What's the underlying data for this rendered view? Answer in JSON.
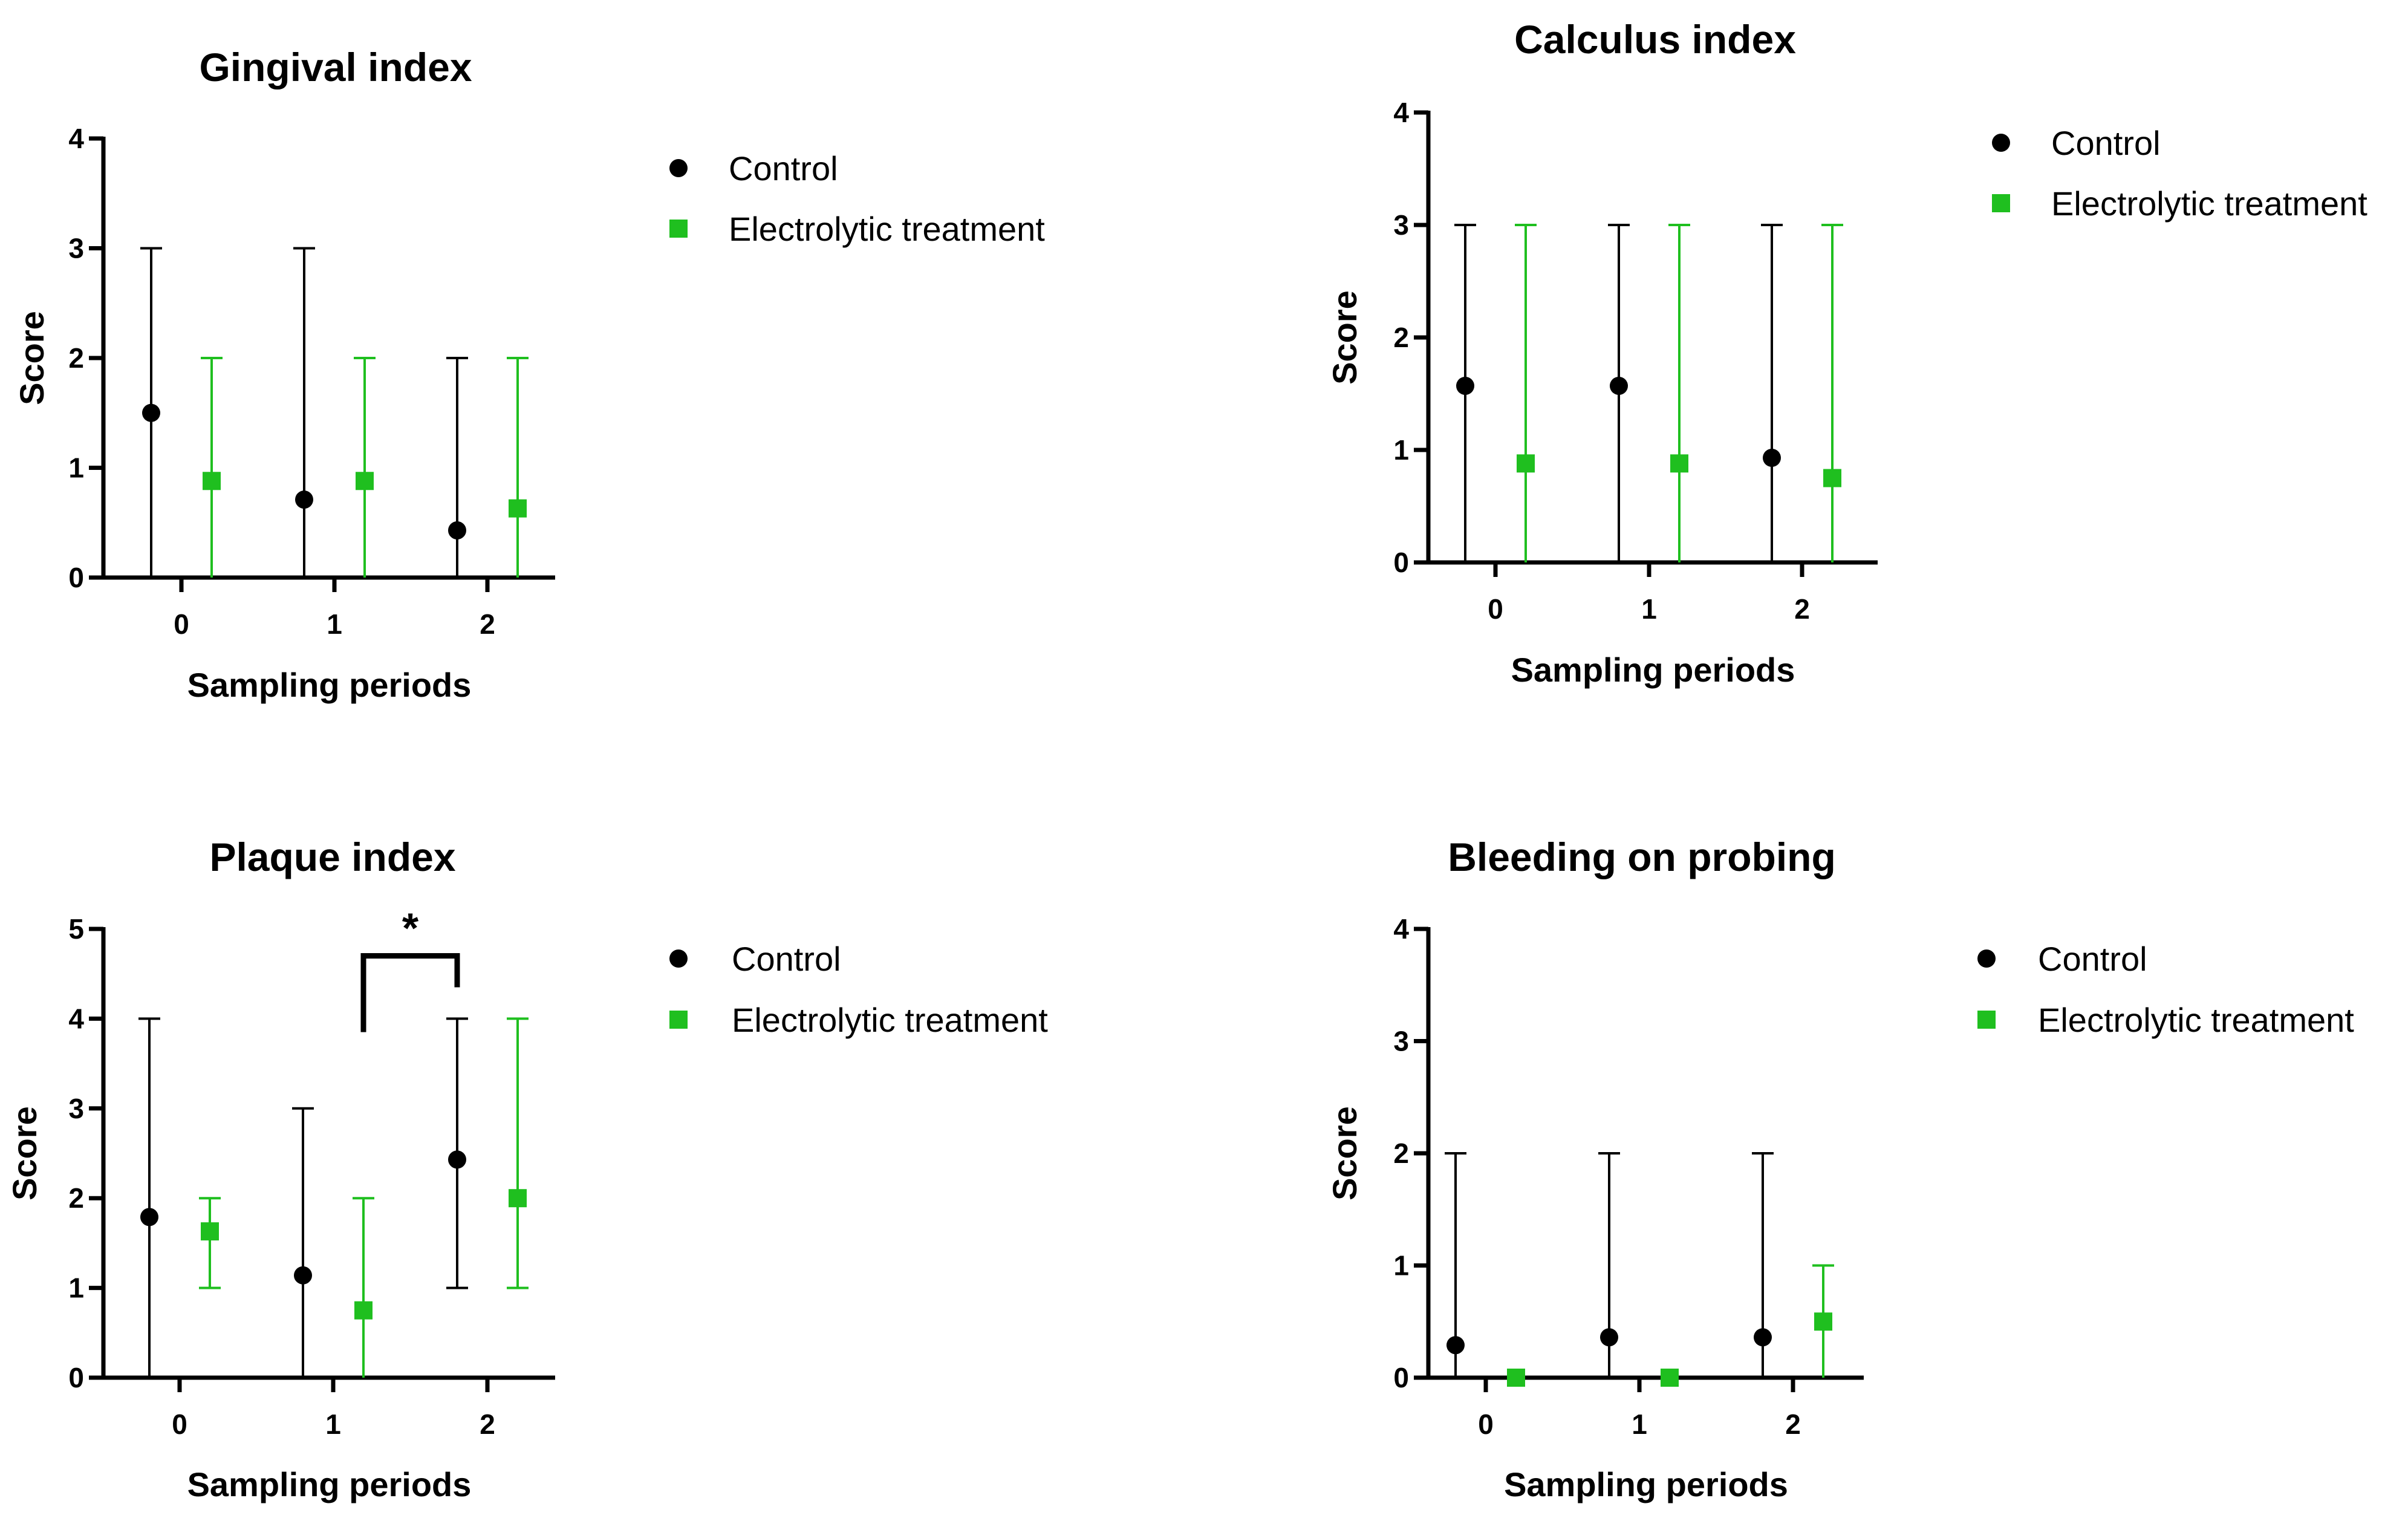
{
  "chart_data": [
    {
      "type": "scatter",
      "title": "Gingival index",
      "xlabel": "Sampling periods",
      "ylabel": "Score",
      "categories": [
        "0",
        "1",
        "2"
      ],
      "yticks": [
        "0",
        "1",
        "2",
        "3",
        "4"
      ],
      "ylim": [
        0,
        4
      ],
      "series": [
        {
          "name": "Control",
          "color": "#000000",
          "marker": "circle",
          "values": [
            1.5,
            0.71,
            0.43
          ],
          "lower": [
            0,
            0,
            0
          ],
          "upper": [
            3,
            3,
            2
          ]
        },
        {
          "name": "Electrolytic treatment",
          "color": "#1fbf1f",
          "marker": "square",
          "values": [
            0.88,
            0.88,
            0.63
          ],
          "lower": [
            0,
            0,
            0
          ],
          "upper": [
            2,
            2,
            2
          ]
        }
      ],
      "legend": [
        "Control",
        "Electrolytic treatment"
      ],
      "annotations": []
    },
    {
      "type": "scatter",
      "title": "Calculus index",
      "xlabel": "Sampling periods",
      "ylabel": "Score",
      "categories": [
        "0",
        "1",
        "2"
      ],
      "yticks": [
        "0",
        "1",
        "2",
        "3",
        "4"
      ],
      "ylim": [
        0,
        4
      ],
      "series": [
        {
          "name": "Control",
          "color": "#000000",
          "marker": "circle",
          "values": [
            1.57,
            1.57,
            0.93
          ],
          "lower": [
            0,
            0,
            0
          ],
          "upper": [
            3,
            3,
            3
          ]
        },
        {
          "name": "Electrolytic treatment",
          "color": "#1fbf1f",
          "marker": "square",
          "values": [
            0.88,
            0.88,
            0.75
          ],
          "lower": [
            0,
            0,
            0
          ],
          "upper": [
            3,
            3,
            3
          ]
        }
      ],
      "legend": [
        "Control",
        "Electrolytic treatment"
      ],
      "annotations": []
    },
    {
      "type": "scatter",
      "title": "Plaque index",
      "xlabel": "Sampling periods",
      "ylabel": "Score",
      "categories": [
        "0",
        "1",
        "2"
      ],
      "yticks": [
        "0",
        "1",
        "2",
        "3",
        "4",
        "5"
      ],
      "ylim": [
        0,
        5
      ],
      "series": [
        {
          "name": "Control",
          "color": "#000000",
          "marker": "circle",
          "values": [
            1.79,
            1.14,
            2.43
          ],
          "lower": [
            0,
            0,
            1
          ],
          "upper": [
            4,
            3,
            4
          ]
        },
        {
          "name": "Electrolytic treatment",
          "color": "#1fbf1f",
          "marker": "square",
          "values": [
            1.63,
            0.75,
            2.0
          ],
          "lower": [
            1,
            0,
            1
          ],
          "upper": [
            2,
            2,
            4
          ]
        }
      ],
      "legend": [
        "Control",
        "Electrolytic treatment"
      ],
      "annotations": [
        {
          "label": "*",
          "from": "Electrolytic treatment @ 1",
          "to": "Control @ 2"
        }
      ]
    },
    {
      "type": "scatter",
      "title": "Bleeding on probing",
      "xlabel": "Sampling periods",
      "ylabel": "Score",
      "categories": [
        "0",
        "1",
        "2"
      ],
      "yticks": [
        "0",
        "1",
        "2",
        "3",
        "4"
      ],
      "ylim": [
        0,
        4
      ],
      "series": [
        {
          "name": "Control",
          "color": "#000000",
          "marker": "circle",
          "values": [
            0.29,
            0.36,
            0.36
          ],
          "lower": [
            0,
            0,
            0
          ],
          "upper": [
            2,
            2,
            2
          ]
        },
        {
          "name": "Electrolytic treatment",
          "color": "#1fbf1f",
          "marker": "square",
          "values": [
            0.0,
            0.0,
            0.5
          ],
          "lower": [
            0,
            0,
            0
          ],
          "upper": [
            0,
            0,
            1
          ]
        }
      ],
      "legend": [
        "Control",
        "Electrolytic treatment"
      ],
      "annotations": []
    }
  ]
}
